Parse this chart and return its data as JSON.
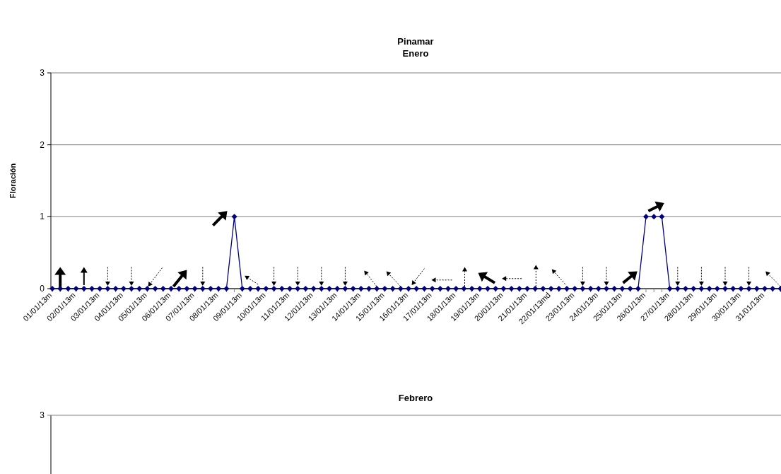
{
  "chart_data": [
    {
      "type": "line",
      "title": "Pinamar",
      "subtitle": "Enero",
      "ylabel": "Floración",
      "categories": [
        "01/01/13m",
        null,
        null,
        "02/01/13m",
        null,
        null,
        "03/01/13m",
        null,
        null,
        "04/01/13m",
        null,
        null,
        "05/01/13m",
        null,
        null,
        "06/01/13m",
        null,
        null,
        "07/01/13m",
        null,
        null,
        "08/01/13m",
        null,
        null,
        "09/01/13m",
        null,
        null,
        "10/01/13m",
        null,
        null,
        "11/01/13m",
        null,
        null,
        "12/01/13m",
        null,
        null,
        "13/01/13m",
        null,
        null,
        "14/01/13m",
        null,
        null,
        "15/01/13m",
        null,
        null,
        "16/01/13m",
        null,
        null,
        "17/01/13m",
        null,
        null,
        "18/01/13m",
        null,
        null,
        "19/01/13m",
        null,
        null,
        "20/01/13m",
        null,
        null,
        "21/01/13m",
        null,
        null,
        "22/01/13md",
        null,
        null,
        "23/01/13m",
        null,
        null,
        "24/01/13m",
        null,
        null,
        "25/01/13m",
        null,
        null,
        "26/01/13m",
        null,
        null,
        "27/01/13m",
        null,
        null,
        "28/01/13m",
        null,
        null,
        "29/01/13m",
        null,
        null,
        "30/01/13m",
        null,
        null,
        "31/01/13m",
        null,
        null
      ],
      "series": [
        {
          "color": "#000080",
          "values": [
            0,
            0,
            0,
            0,
            0,
            0,
            0,
            0,
            0,
            0,
            0,
            0,
            0,
            0,
            0,
            0,
            0,
            0,
            0,
            0,
            0,
            0,
            0,
            1,
            0,
            0,
            0,
            0,
            0,
            0,
            0,
            0,
            0,
            0,
            0,
            0,
            0,
            0,
            0,
            0,
            0,
            0,
            0,
            0,
            0,
            0,
            0,
            0,
            0,
            0,
            0,
            0,
            0,
            0,
            0,
            0,
            0,
            0,
            0,
            0,
            0,
            0,
            0,
            0,
            0,
            0,
            0,
            0,
            0,
            0,
            0,
            0,
            0,
            0,
            0,
            1,
            1,
            1,
            0,
            0,
            0,
            0,
            0,
            0,
            0,
            0,
            0,
            0,
            0,
            0,
            0,
            0,
            0
          ]
        }
      ],
      "ylim": [
        0,
        3
      ],
      "yticks": [
        0,
        1,
        2,
        3
      ],
      "grid": "y",
      "marker": "diamond"
    },
    {
      "type": "other",
      "title": "Febrero",
      "annotations": [
        "3"
      ]
    }
  ]
}
